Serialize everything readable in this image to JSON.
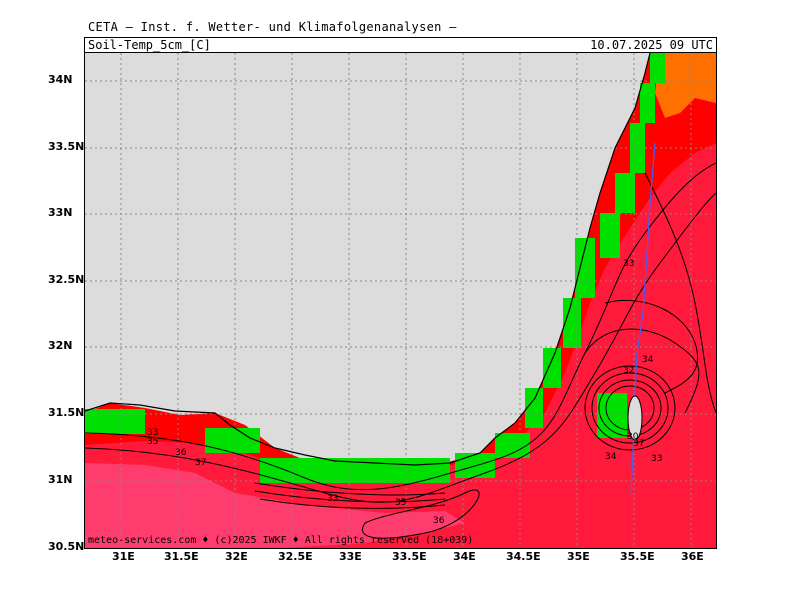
{
  "header": {
    "title": "CETA — Inst. f. Wetter- und Klimafolgenanalysen —",
    "parameter": "Soil-Temp_5cm_[C]",
    "valid_time": "10.07.2025 09 UTC"
  },
  "footer": {
    "copyright": "meteo-services.com ♦ (c)2025 IWKF ♦ All rights reserved (18+039)"
  },
  "axes": {
    "lat_labels": [
      "34N",
      "33.5N",
      "33N",
      "32.5N",
      "32N",
      "31.5N",
      "31N",
      "30.5N"
    ],
    "lon_labels": [
      "31E",
      "31.5E",
      "32E",
      "32.5E",
      "33E",
      "33.5E",
      "34E",
      "34.5E",
      "35E",
      "35.5E",
      "36E"
    ]
  },
  "contour_labels": [
    "33",
    "35",
    "36",
    "37",
    "33",
    "35",
    "36",
    "33",
    "34",
    "32",
    "34",
    "33",
    "30",
    "37"
  ],
  "colors": {
    "sea": "#dcdcdc",
    "cool_land": "#00e000",
    "warm_red": "#ff0000",
    "hot_crimson": "#ff1a3c",
    "hotter_pink": "#ff3c6e",
    "orange": "#ff7000"
  }
}
